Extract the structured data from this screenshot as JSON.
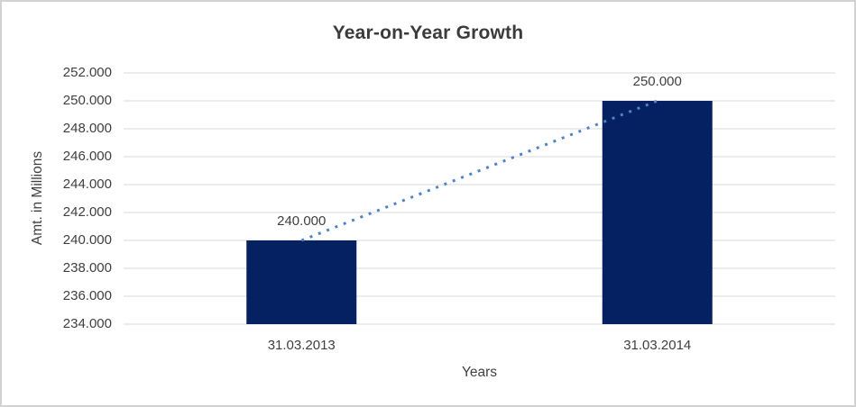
{
  "chart_data": {
    "type": "bar",
    "title": "Year-on-Year Growth",
    "xlabel": "Years",
    "ylabel": "Amt. in Millions",
    "categories": [
      "31.03.2013",
      "31.03.2014"
    ],
    "values": [
      240000,
      250000
    ],
    "value_labels": [
      "240.000",
      "250.000"
    ],
    "ylim": [
      234000,
      252000
    ],
    "y_tick_step": 2000,
    "y_tick_labels": [
      "234.000",
      "236.000",
      "238.000",
      "240.000",
      "242.000",
      "244.000",
      "246.000",
      "248.000",
      "250.000",
      "252.000"
    ],
    "grid": "horizontal-only",
    "legend": "none",
    "trendline": {
      "type": "linear",
      "style": "dotted",
      "connects": "bar-top-centers"
    },
    "colors": {
      "bar": "#052161",
      "trendline": "#4e84c4",
      "gridline": "#d9d9d9",
      "text": "#404040",
      "title": "#3b3b3b",
      "frame_border": "#d2d2d2",
      "background": "#ffffff"
    }
  }
}
